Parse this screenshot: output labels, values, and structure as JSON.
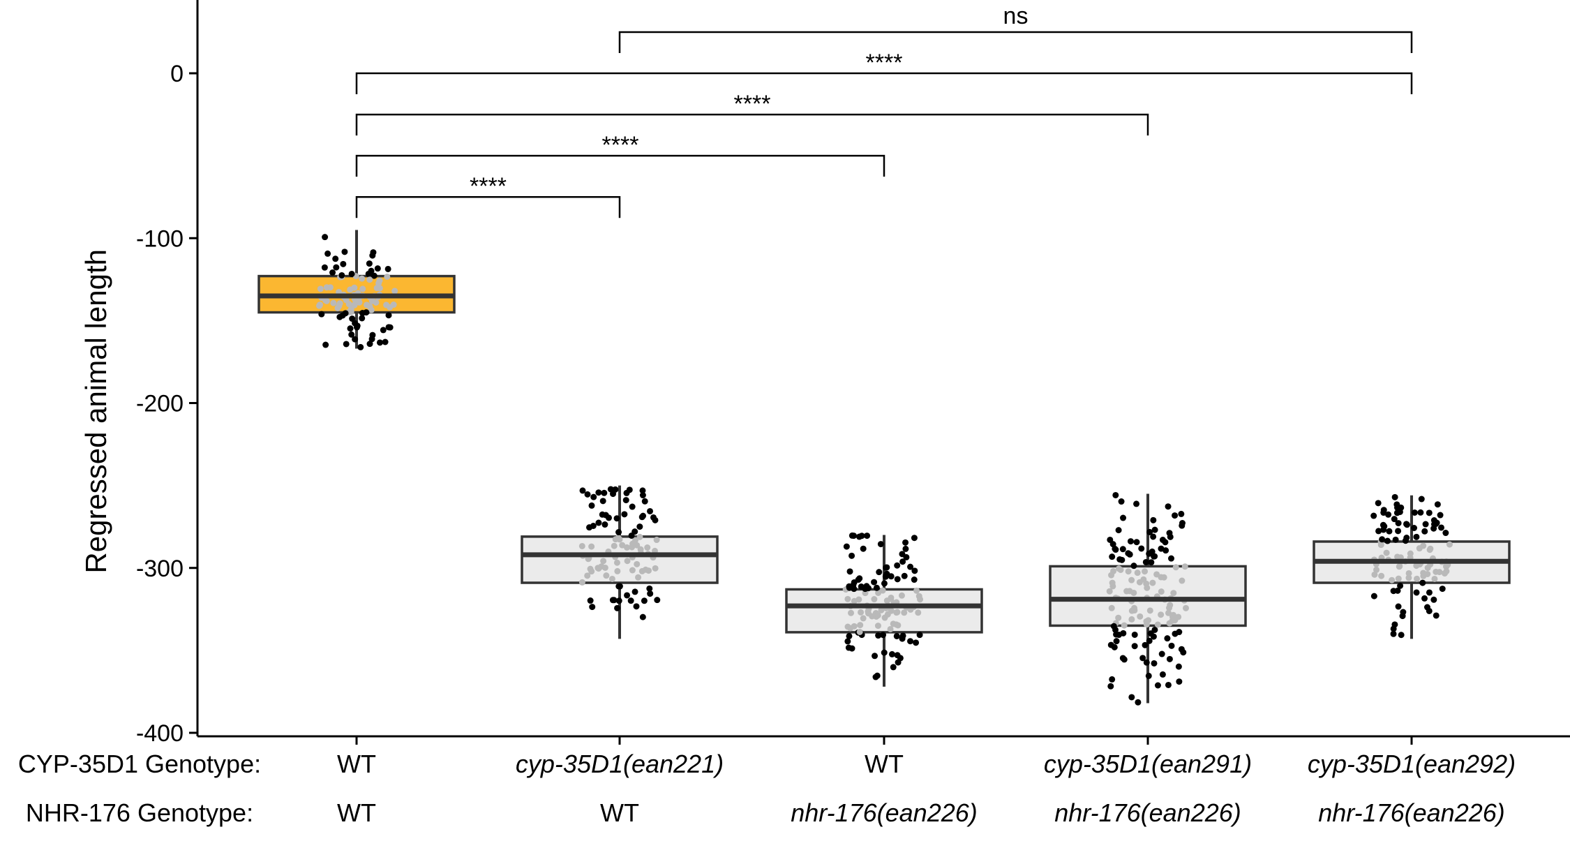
{
  "chart_data": {
    "type": "box",
    "ylabel": "Regressed animal length",
    "ylim": [
      -400,
      45
    ],
    "yticks": [
      0,
      -100,
      -200,
      -300,
      -400
    ],
    "yticks_labels": [
      "0",
      "-100",
      "-200",
      "-300",
      "-400"
    ],
    "grid": false,
    "rows": [
      {
        "label": "CYP-35D1 Genotype:"
      },
      {
        "label": "NHR-176 Genotype:"
      }
    ],
    "groups": [
      {
        "cyp": "WT",
        "cyp_italic": false,
        "nhr": "WT",
        "nhr_italic": false,
        "color": "#FBB731",
        "q1": -145,
        "median": -135,
        "q3": -123,
        "whisker_low": -167,
        "whisker_high": -95,
        "n": 100
      },
      {
        "cyp": "cyp-35D1(ean221)",
        "cyp_italic": true,
        "nhr": "WT",
        "nhr_italic": false,
        "color": "#EBEBEB",
        "q1": -309,
        "median": -292,
        "q3": -281,
        "whisker_low": -343,
        "whisker_high": -250,
        "n": 100
      },
      {
        "cyp": "WT",
        "cyp_italic": false,
        "nhr": "nhr-176(ean226)",
        "nhr_italic": true,
        "color": "#EBEBEB",
        "q1": -339,
        "median": -323,
        "q3": -313,
        "whisker_low": -372,
        "whisker_high": -280,
        "n": 120
      },
      {
        "cyp": "cyp-35D1(ean291)",
        "cyp_italic": true,
        "nhr": "nhr-176(ean226)",
        "nhr_italic": true,
        "color": "#EBEBEB",
        "q1": -335,
        "median": -319,
        "q3": -299,
        "whisker_low": -382,
        "whisker_high": -255,
        "n": 140
      },
      {
        "cyp": "cyp-35D1(ean292)",
        "cyp_italic": true,
        "nhr": "nhr-176(ean226)",
        "nhr_italic": true,
        "color": "#EBEBEB",
        "q1": -309,
        "median": -296,
        "q3": -284,
        "whisker_low": -343,
        "whisker_high": -256,
        "n": 110
      }
    ],
    "comparisons": [
      {
        "from": 0,
        "to": 1,
        "y": -75,
        "label": "****"
      },
      {
        "from": 0,
        "to": 2,
        "y": -50,
        "label": "****"
      },
      {
        "from": 0,
        "to": 3,
        "y": -25,
        "label": "****"
      },
      {
        "from": 0,
        "to": 4,
        "y": 0,
        "label": "****"
      },
      {
        "from": 1,
        "to": 4,
        "y": 25,
        "label": "ns"
      }
    ]
  }
}
